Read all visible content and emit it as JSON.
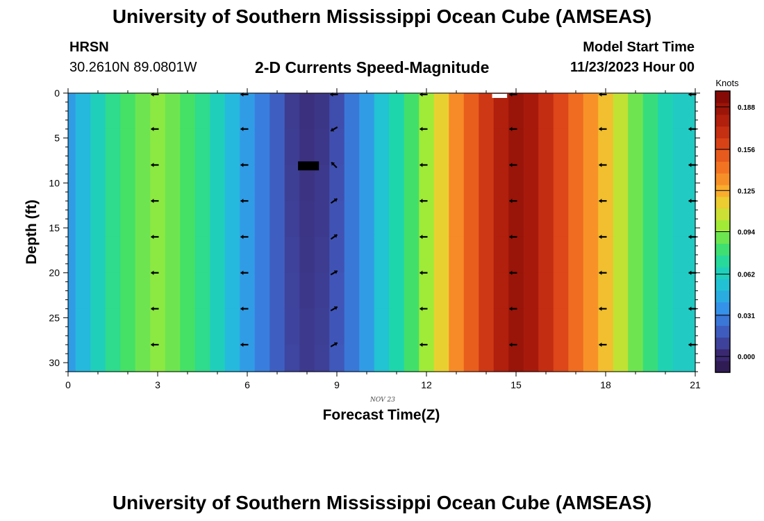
{
  "header": {
    "title": "University of Southern Mississippi Ocean Cube (AMSEAS)",
    "station": "HRSN",
    "coordinates": "30.2610N  89.0801W",
    "subtitle": "2-D Currents Speed-Magnitude",
    "model_start_label": "Model Start Time",
    "model_start_value": "11/23/2023 Hour 00"
  },
  "footer": {
    "title": "University of Southern Mississippi Ocean Cube (AMSEAS)"
  },
  "chart_data": {
    "type": "heatmap",
    "title": "2-D Currents Speed-Magnitude",
    "xlabel": "Forecast Time(Z)",
    "ylabel": "Depth (ft)",
    "xlim": [
      0,
      21
    ],
    "ylim": [
      0,
      31
    ],
    "y_inverted": true,
    "x_ticks": [
      0,
      3,
      6,
      9,
      12,
      15,
      18,
      21
    ],
    "y_ticks": [
      0,
      5,
      10,
      15,
      20,
      25,
      30
    ],
    "date_label": "NOV 23",
    "colorbar": {
      "label": "Knots",
      "ticks": [
        "0.188",
        "0.156",
        "0.125",
        "0.094",
        "0.062",
        "0.031",
        "0.000"
      ],
      "tick_values": [
        0.188,
        0.156,
        0.125,
        0.094,
        0.062,
        0.031,
        0.0
      ],
      "min": -0.012,
      "max": 0.2
    },
    "time_hours": [
      0,
      0.5,
      1,
      1.5,
      2,
      2.5,
      3,
      3.5,
      4,
      4.5,
      5,
      5.5,
      6,
      6.5,
      7,
      7.5,
      8,
      8.5,
      9,
      9.5,
      10,
      10.5,
      11,
      11.5,
      12,
      12.5,
      13,
      13.5,
      14,
      14.5,
      15,
      15.5,
      16,
      16.5,
      17,
      17.5,
      18,
      18.5,
      19,
      19.5,
      20,
      20.5,
      21
    ],
    "speed_knots": [
      0.04,
      0.05,
      0.063,
      0.075,
      0.083,
      0.09,
      0.095,
      0.09,
      0.083,
      0.075,
      0.063,
      0.05,
      0.04,
      0.03,
      0.02,
      0.012,
      0.008,
      0.01,
      0.018,
      0.028,
      0.04,
      0.055,
      0.068,
      0.082,
      0.098,
      0.115,
      0.135,
      0.15,
      0.165,
      0.178,
      0.188,
      0.182,
      0.17,
      0.158,
      0.145,
      0.133,
      0.12,
      0.105,
      0.09,
      0.078,
      0.066,
      0.06,
      0.06
    ],
    "vector_times": [
      3,
      6,
      9,
      12,
      15,
      18,
      21
    ],
    "vector_depths": [
      0,
      4,
      8,
      12,
      16,
      20,
      24,
      28
    ],
    "vector_directions_deg": [
      [
        180,
        180,
        180,
        180,
        180,
        180,
        180,
        180
      ],
      [
        180,
        180,
        180,
        180,
        180,
        180,
        180,
        180
      ],
      [
        180,
        210,
        135,
        35,
        35,
        30,
        30,
        30
      ],
      [
        180,
        180,
        180,
        180,
        180,
        180,
        180,
        180
      ],
      [
        180,
        180,
        180,
        180,
        180,
        180,
        180,
        180
      ],
      [
        180,
        180,
        180,
        180,
        180,
        180,
        180,
        180
      ],
      [
        180,
        180,
        180,
        180,
        180,
        180,
        180,
        180
      ]
    ]
  }
}
